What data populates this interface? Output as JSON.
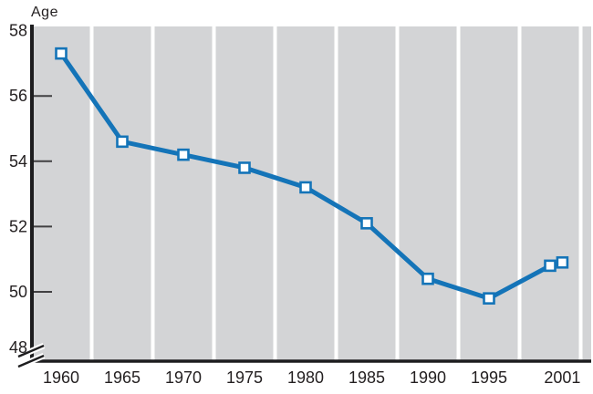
{
  "chart": {
    "y_axis_title": "Age"
  },
  "chart_data": {
    "type": "line",
    "title": "",
    "ylabel": "Age",
    "xlabel": "",
    "x": [
      1960,
      1965,
      1970,
      1975,
      1980,
      1985,
      1990,
      1995,
      2000,
      2001
    ],
    "values": [
      57.3,
      54.6,
      54.2,
      53.8,
      53.2,
      52.1,
      50.4,
      49.8,
      50.8,
      50.9
    ],
    "x_tick_labels": [
      "1960",
      "1965",
      "1970",
      "1975",
      "1980",
      "1985",
      "1990",
      "1995",
      "2001"
    ],
    "x_tick_values": [
      1960,
      1965,
      1970,
      1975,
      1980,
      1985,
      1990,
      1995,
      2001
    ],
    "y_tick_labels": [
      "48",
      "50",
      "52",
      "54",
      "56",
      "58"
    ],
    "y_tick_values": [
      48,
      50,
      52,
      54,
      56,
      58
    ],
    "ylim": [
      48,
      58
    ],
    "xlim": [
      1957.7,
      2003.4
    ],
    "axis_break_at_bottom": true,
    "grid": "vertical white gridlines midway between 5-year ticks",
    "legend": "none",
    "marker_shape": "square",
    "colors": {
      "line": "#1474b8",
      "marker_fill": "#ffffff",
      "marker_border": "#1474b8",
      "plot_background": "#d3d4d6",
      "gridline": "#ffffff",
      "axis": "#1d1d1f",
      "tick": "#414042",
      "text": "#231f20"
    }
  }
}
